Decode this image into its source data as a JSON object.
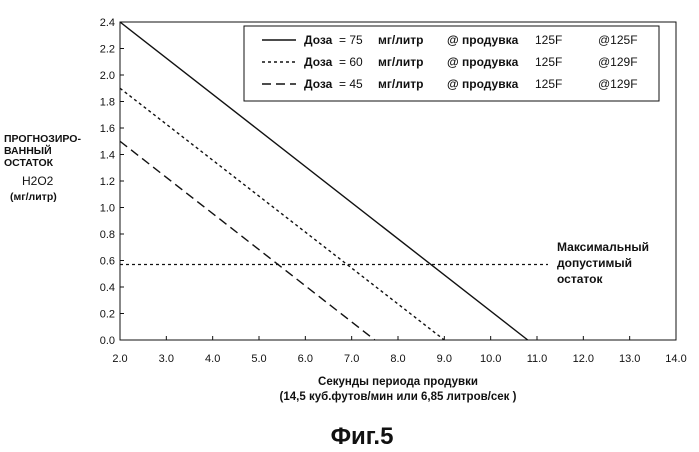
{
  "chart_data": {
    "type": "line",
    "title": "",
    "caption": "Фиг.5",
    "xlabel": "Секунды периода продувки",
    "xlabel2": "(14,5 куб.футов/мин или 6,85 литров/сек )",
    "ylabel_lines": [
      "ПРОГНОЗИРО-",
      "ВАННЫЙ",
      "ОСТАТОК"
    ],
    "ylabel_formula": "H2O2",
    "ylabel_unit": "(мг/литр)",
    "xlim": [
      2.0,
      14.0
    ],
    "ylim": [
      0.0,
      2.4
    ],
    "x_ticks": [
      "2.0",
      "3.0",
      "4.0",
      "5.0",
      "6.0",
      "7.0",
      "8.0",
      "9.0",
      "10.0",
      "11.0",
      "12.0",
      "13.0",
      "14.0"
    ],
    "y_ticks": [
      "0.0",
      "0.2",
      "0.4",
      "0.6",
      "0.8",
      "1.0",
      "1.2",
      "1.4",
      "1.6",
      "1.8",
      "2.0",
      "2.2",
      "2.4"
    ],
    "grid": false,
    "legend_position": "top-right",
    "series": [
      {
        "name": "Доза = 75 мг/литр @ продувка 125F @125F",
        "style": "solid",
        "x": [
          2.0,
          10.8
        ],
        "y": [
          2.4,
          0.0
        ],
        "legend": {
          "dose": "Доза",
          "val": "= 75",
          "unit": "мг/литр",
          "at": "@ продувка",
          "temp": "125F",
          "temp2": "@125F"
        }
      },
      {
        "name": "Доза = 60 мг/литр @ продувка 125F @129F",
        "style": "dotted",
        "x": [
          2.0,
          9.0
        ],
        "y": [
          1.9,
          0.0
        ],
        "legend": {
          "dose": "Доза",
          "val": "= 60",
          "unit": "мг/литр",
          "at": "@ продувка",
          "temp": "125F",
          "temp2": "@129F"
        }
      },
      {
        "name": "Доза = 45 мг/литр @ продувка 125F @129F",
        "style": "dashed",
        "x": [
          2.0,
          7.5
        ],
        "y": [
          1.5,
          0.0
        ],
        "legend": {
          "dose": "Доза",
          "val": "= 45",
          "unit": "мг/литр",
          "at": "@ продувка",
          "temp": "125F",
          "temp2": "@129F"
        }
      }
    ],
    "reference_line": {
      "y": 0.57,
      "style": "dotted",
      "label_lines": [
        "Максимальный",
        "допустимый",
        "остаток"
      ]
    }
  }
}
